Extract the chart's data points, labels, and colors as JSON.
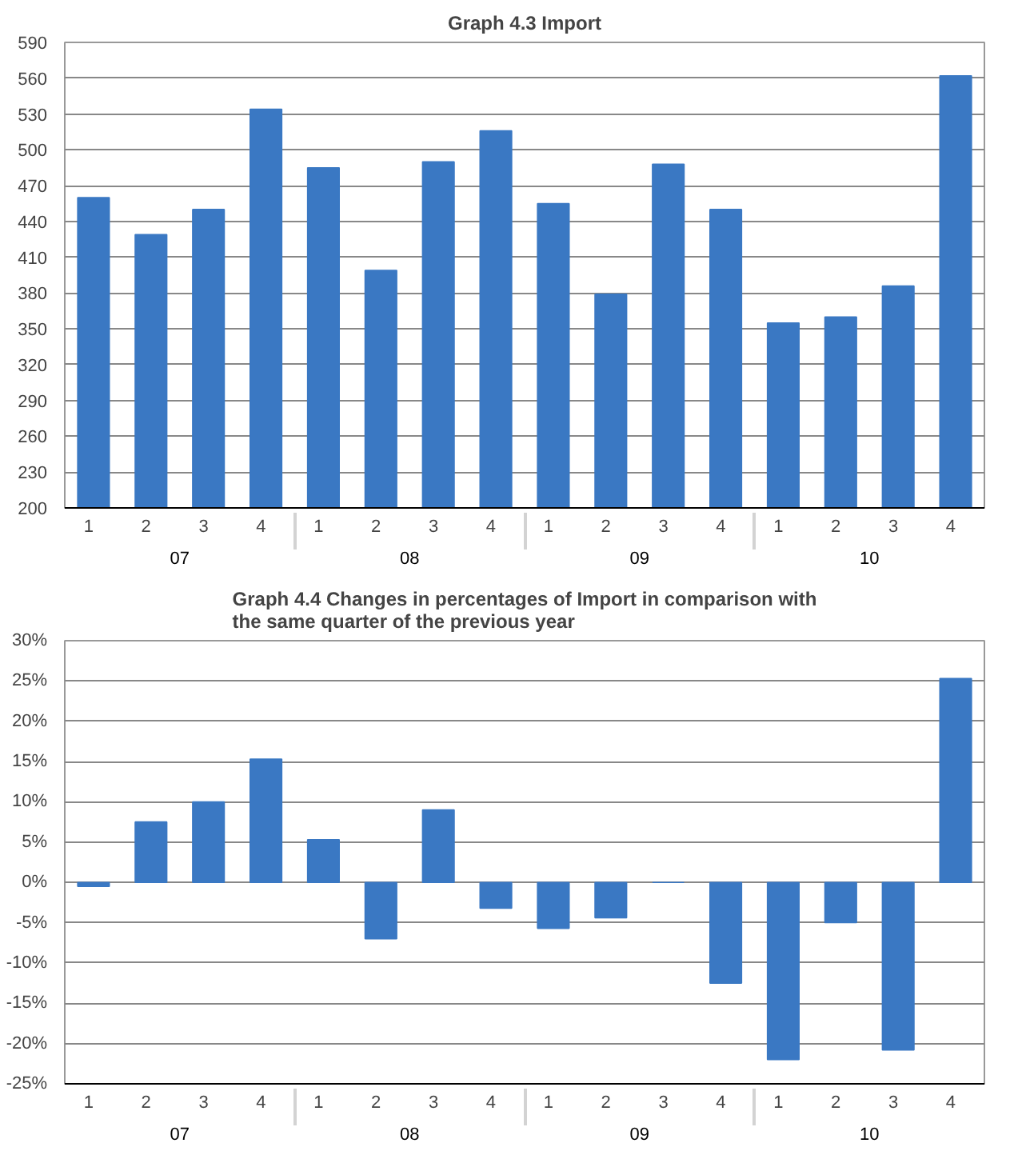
{
  "chart_data": [
    {
      "type": "bar",
      "title": "Graph 4.3 Import",
      "categories": [
        "1",
        "2",
        "3",
        "4",
        "1",
        "2",
        "3",
        "4",
        "1",
        "2",
        "3",
        "4",
        "1",
        "2",
        "3",
        "4"
      ],
      "annotations": [
        "07",
        "08",
        "09",
        "10"
      ],
      "values": [
        460,
        429,
        450,
        534,
        485,
        399,
        490,
        516,
        455,
        379,
        488,
        450,
        355,
        360,
        386,
        562
      ],
      "color": "#3a78c3",
      "ylim": [
        200,
        590
      ],
      "yticks": [
        200,
        230,
        260,
        290,
        320,
        350,
        380,
        410,
        440,
        470,
        500,
        530,
        560,
        590
      ],
      "grid": "y"
    },
    {
      "type": "bar",
      "title": "Graph 4.4 Changes in percentages of Import in comparison with\nthe same quarter of the previous year",
      "categories": [
        "1",
        "2",
        "3",
        "4",
        "1",
        "2",
        "3",
        "4",
        "1",
        "2",
        "3",
        "4",
        "1",
        "2",
        "3",
        "4"
      ],
      "annotations": [
        "07",
        "08",
        "09",
        "10"
      ],
      "values": [
        -0.5,
        7.5,
        10,
        15.3,
        5.3,
        -7,
        9,
        -3.2,
        -5.7,
        -4.4,
        0,
        -12.5,
        -22,
        -5,
        -20.8,
        25.3
      ],
      "color": "#3a78c3",
      "ylim": [
        -25,
        30
      ],
      "yticks": [
        {
          "value": -25,
          "label": "-25%"
        },
        {
          "value": -20,
          "label": "-20%"
        },
        {
          "value": -15,
          "label": "-15%"
        },
        {
          "value": -10,
          "label": "-10%"
        },
        {
          "value": -5,
          "label": "-5%"
        },
        {
          "value": 0,
          "label": "0%"
        },
        {
          "value": 5,
          "label": "5%"
        },
        {
          "value": 10,
          "label": "10%"
        },
        {
          "value": 15,
          "label": "15%"
        },
        {
          "value": 20,
          "label": "20%"
        },
        {
          "value": 25,
          "label": "25%"
        },
        {
          "value": 30,
          "label": "30%"
        }
      ],
      "grid": "y"
    }
  ]
}
